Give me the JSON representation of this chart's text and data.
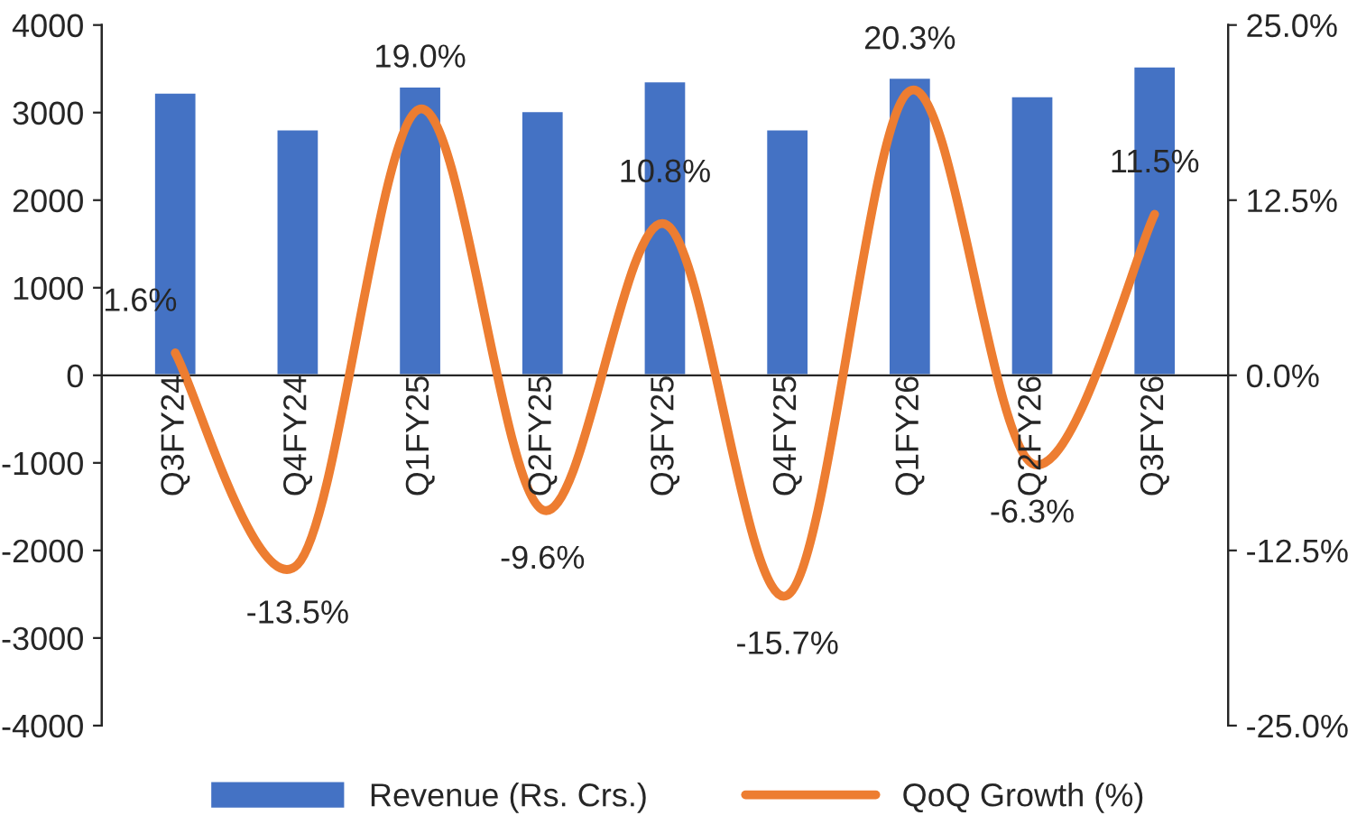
{
  "chart_data": {
    "type": "bar",
    "categories": [
      "Q3FY24",
      "Q4FY24",
      "Q1FY25",
      "Q2FY25",
      "Q3FY25",
      "Q4FY25",
      "Q1FY26",
      "Q2FY26",
      "Q3FY26"
    ],
    "series": [
      {
        "name": "Revenue (Rs. Crs.)",
        "color": "#4472c4",
        "values": [
          3230,
          2810,
          3300,
          3020,
          3360,
          2810,
          3400,
          3190,
          3530
        ]
      },
      {
        "name": "QoQ Growth (%)",
        "type": "line",
        "axis": "y2",
        "color": "#ed7d31",
        "values": [
          1.6,
          -13.5,
          19.0,
          -9.6,
          10.8,
          -15.7,
          20.3,
          -6.3,
          11.5
        ],
        "value_labels": [
          "1.6%",
          "-13.5%",
          "19.0%",
          "-9.6%",
          "10.8%",
          "-15.7%",
          "20.3%",
          "-6.3%",
          "11.5%"
        ]
      }
    ],
    "ylim": [
      -4000,
      4000
    ],
    "yticks": [
      -4000,
      -3000,
      -2000,
      -1000,
      0,
      1000,
      2000,
      3000,
      4000
    ],
    "y2lim": [
      -25,
      25
    ],
    "y2ticks": [
      {
        "value": -25,
        "label": "-25.0%"
      },
      {
        "value": -12.5,
        "label": "-12.5%"
      },
      {
        "value": 0,
        "label": "0.0%"
      },
      {
        "value": 12.5,
        "label": "12.5%"
      },
      {
        "value": 25,
        "label": "25.0%"
      }
    ],
    "legend": "bottom",
    "grid": false,
    "marker": "none",
    "line_style": "solid"
  }
}
